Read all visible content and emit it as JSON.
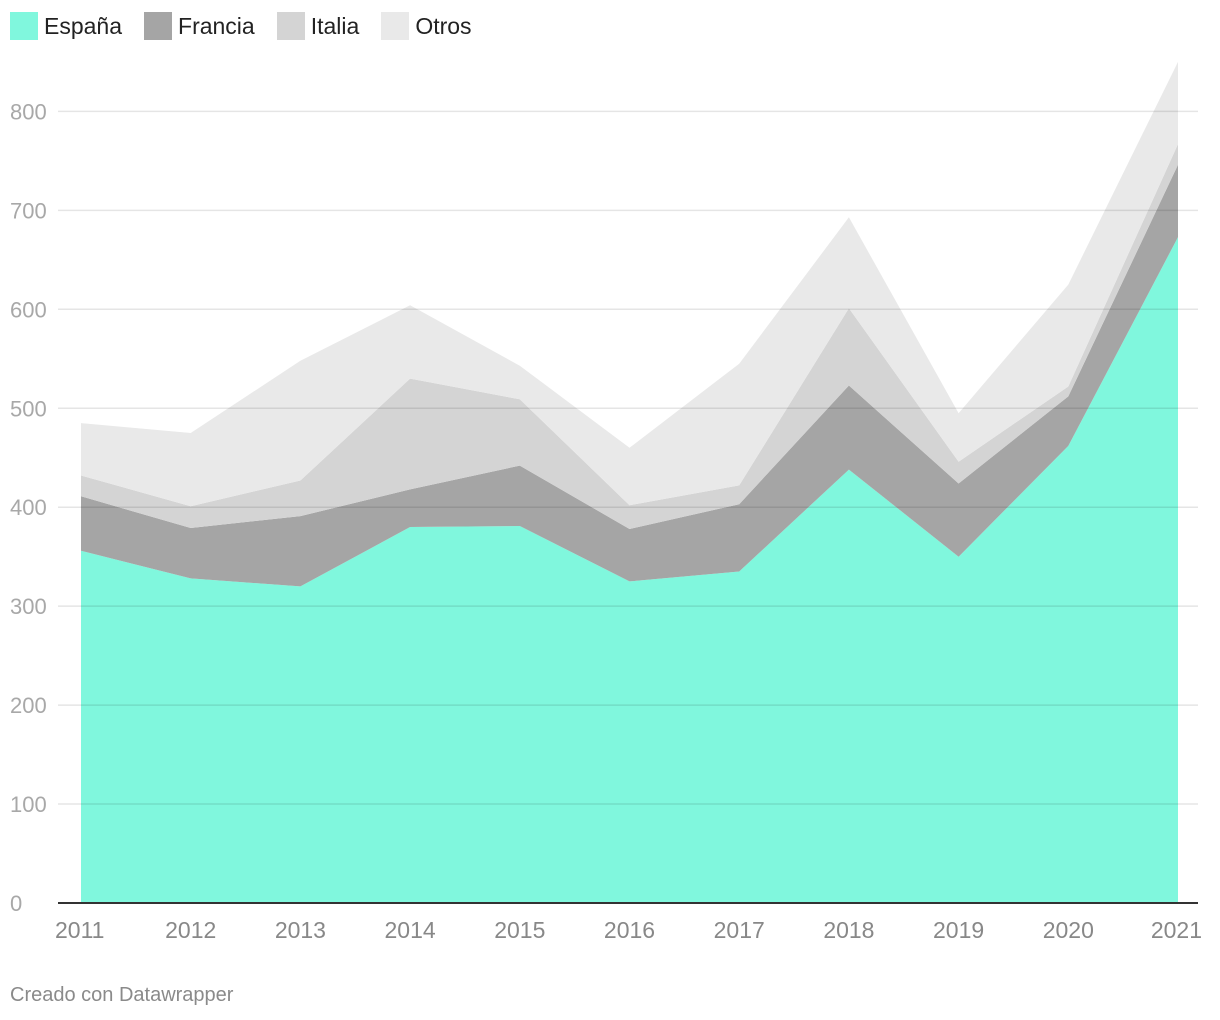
{
  "chart_data": {
    "type": "area",
    "stacked": true,
    "x": [
      "2011",
      "2012",
      "2013",
      "2014",
      "2015",
      "2016",
      "2017",
      "2018",
      "2019",
      "2020",
      "2021"
    ],
    "series": [
      {
        "name": "España",
        "color": "#80f7dd",
        "values": [
          356,
          328,
          320,
          380,
          381,
          325,
          335,
          438,
          350,
          462,
          673
        ]
      },
      {
        "name": "Francia",
        "color": "#a5a5a5",
        "values": [
          55,
          51,
          71,
          38,
          61,
          53,
          68,
          85,
          74,
          50,
          73
        ]
      },
      {
        "name": "Italia",
        "color": "#d4d4d4",
        "values": [
          21,
          22,
          36,
          112,
          67,
          24,
          19,
          78,
          22,
          10,
          21
        ]
      },
      {
        "name": "Otros",
        "color": "#e9e9e9",
        "values": [
          53,
          74,
          121,
          74,
          34,
          58,
          123,
          92,
          49,
          103,
          83
        ]
      }
    ],
    "ylim": [
      0,
      850
    ],
    "yticks": [
      0,
      100,
      200,
      300,
      400,
      500,
      600,
      700,
      800
    ],
    "grid": true,
    "legend": "top-left"
  },
  "footer": "Creado con Datawrapper"
}
